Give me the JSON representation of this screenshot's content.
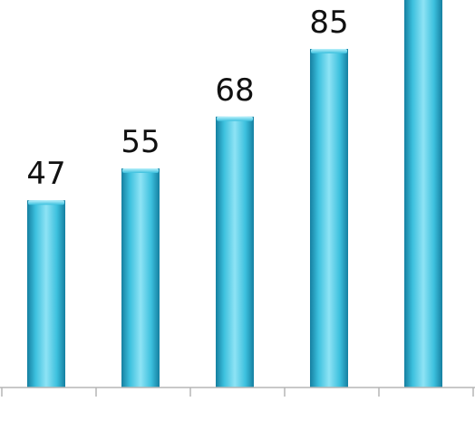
{
  "chart_data": {
    "type": "bar",
    "title": "",
    "xlabel": "",
    "ylabel": "",
    "categories": [
      "",
      "",
      "",
      "",
      ""
    ],
    "series": [
      {
        "values": [
          47,
          55,
          68,
          85,
          100
        ]
      }
    ],
    "data_labels": [
      "47",
      "55",
      "68",
      "85",
      ""
    ],
    "grid": false,
    "legend": "none",
    "colors": {
      "bar_mid": "#3cc0de",
      "bar_dark": "#157fa0",
      "bar_light": "#8ee3f5",
      "axis": "#b5b5b5",
      "label_text": "#111111"
    }
  }
}
